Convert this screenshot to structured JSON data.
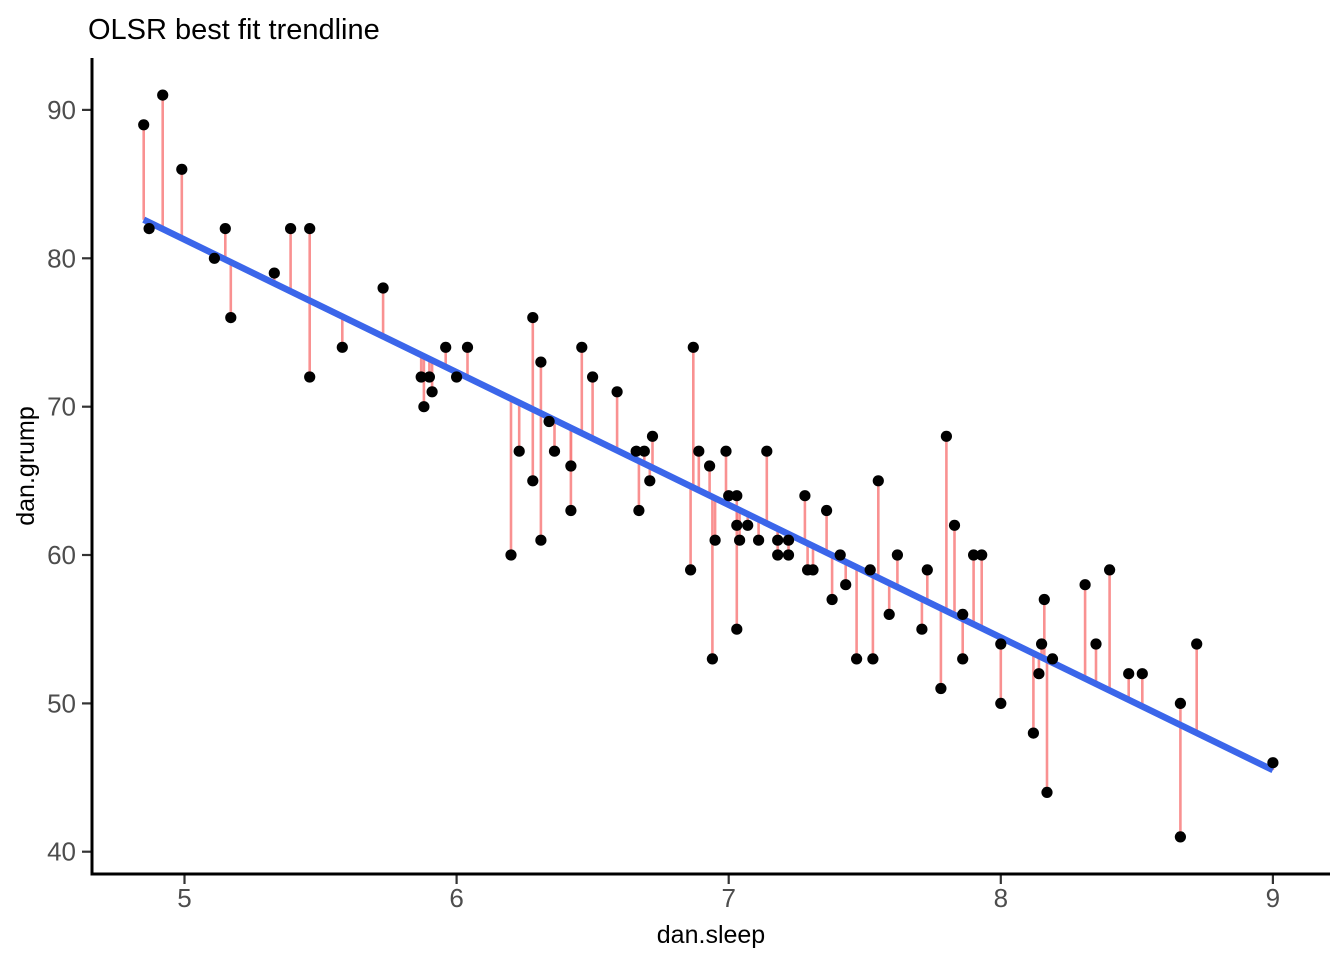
{
  "title": "OLSR best fit trendline",
  "chart_data": {
    "type": "scatter",
    "title": "OLSR best fit trendline",
    "xlabel": "dan.sleep",
    "ylabel": "dan.grump",
    "xlim": [
      4.66,
      9.21
    ],
    "ylim": [
      38.5,
      93.5
    ],
    "x_ticks": [
      5,
      6,
      7,
      8,
      9
    ],
    "y_ticks": [
      40,
      50,
      60,
      70,
      80,
      90
    ],
    "grid": false,
    "legend_position": "none",
    "point_color": "#000000",
    "residual_color": "#F87E7E",
    "trendline": {
      "kind": "ols-fit",
      "equation": "grump = 125.96 - 8.94 * sleep",
      "intercept": 125.96,
      "slope": -8.94,
      "x_start": 4.85,
      "x_end": 9.0,
      "color": "#3B66EA"
    },
    "residuals_shown": true,
    "points": [
      [
        4.85,
        89
      ],
      [
        4.92,
        91
      ],
      [
        4.99,
        86
      ],
      [
        4.87,
        82
      ],
      [
        5.15,
        82
      ],
      [
        5.11,
        80
      ],
      [
        5.33,
        79
      ],
      [
        5.39,
        82
      ],
      [
        5.46,
        82
      ],
      [
        5.17,
        76
      ],
      [
        5.73,
        78
      ],
      [
        5.46,
        72
      ],
      [
        5.58,
        74
      ],
      [
        5.87,
        72
      ],
      [
        5.9,
        72
      ],
      [
        5.91,
        71
      ],
      [
        5.88,
        70
      ],
      [
        5.96,
        74
      ],
      [
        6.04,
        74
      ],
      [
        6.0,
        72
      ],
      [
        6.2,
        60
      ],
      [
        6.23,
        67
      ],
      [
        6.28,
        65
      ],
      [
        6.28,
        76
      ],
      [
        6.31,
        73
      ],
      [
        6.31,
        61
      ],
      [
        6.34,
        69
      ],
      [
        6.36,
        67
      ],
      [
        6.42,
        66
      ],
      [
        6.42,
        63
      ],
      [
        6.46,
        74
      ],
      [
        6.5,
        72
      ],
      [
        6.59,
        71
      ],
      [
        6.66,
        67
      ],
      [
        6.69,
        67
      ],
      [
        6.72,
        68
      ],
      [
        6.71,
        65
      ],
      [
        6.67,
        63
      ],
      [
        6.89,
        67
      ],
      [
        6.93,
        66
      ],
      [
        6.87,
        74
      ],
      [
        6.86,
        59
      ],
      [
        6.94,
        53
      ],
      [
        6.95,
        61
      ],
      [
        6.99,
        67
      ],
      [
        7.0,
        64
      ],
      [
        7.03,
        64
      ],
      [
        7.03,
        62
      ],
      [
        7.07,
        62
      ],
      [
        7.04,
        61
      ],
      [
        7.11,
        61
      ],
      [
        7.03,
        55
      ],
      [
        7.14,
        67
      ],
      [
        7.18,
        61
      ],
      [
        7.22,
        61
      ],
      [
        7.18,
        60
      ],
      [
        7.22,
        60
      ],
      [
        7.28,
        64
      ],
      [
        7.29,
        59
      ],
      [
        7.31,
        59
      ],
      [
        7.36,
        63
      ],
      [
        7.38,
        57
      ],
      [
        7.41,
        60
      ],
      [
        7.43,
        58
      ],
      [
        7.47,
        53
      ],
      [
        7.52,
        59
      ],
      [
        7.53,
        53
      ],
      [
        7.55,
        65
      ],
      [
        7.59,
        56
      ],
      [
        7.62,
        60
      ],
      [
        7.71,
        55
      ],
      [
        7.73,
        59
      ],
      [
        7.78,
        51
      ],
      [
        7.8,
        68
      ],
      [
        7.83,
        62
      ],
      [
        7.86,
        56
      ],
      [
        7.86,
        53
      ],
      [
        7.9,
        60
      ],
      [
        7.93,
        60
      ],
      [
        8.0,
        54
      ],
      [
        8.0,
        50
      ],
      [
        8.12,
        48
      ],
      [
        8.14,
        52
      ],
      [
        8.15,
        54
      ],
      [
        8.16,
        57
      ],
      [
        8.17,
        44
      ],
      [
        8.19,
        53
      ],
      [
        8.31,
        58
      ],
      [
        8.35,
        54
      ],
      [
        8.4,
        59
      ],
      [
        8.47,
        52
      ],
      [
        8.52,
        52
      ],
      [
        8.66,
        41
      ],
      [
        8.66,
        50
      ],
      [
        8.72,
        54
      ],
      [
        9.0,
        46
      ]
    ]
  },
  "style": {
    "axis_line_color": "#000000",
    "tick_color": "#333333",
    "tick_label_color": "#4d4d4d",
    "background_color": "#ffffff"
  }
}
